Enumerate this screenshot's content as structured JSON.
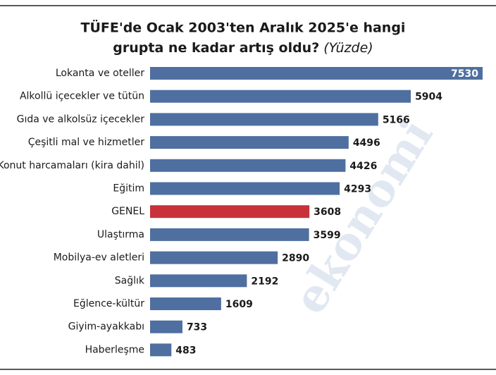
{
  "watermark": "ekonomi",
  "chart_data": {
    "type": "bar",
    "orientation": "horizontal",
    "title_lines": [
      "TÜFE'de Ocak 2003'ten Aralık 2025'e hangi",
      "grupta ne kadar artış oldu?"
    ],
    "subtitle": "(Yüzde)",
    "categories": [
      "Lokanta ve oteller",
      "Alkollü içecekler ve tütün",
      "Gıda ve alkolsüz içecekler",
      "Çeşitli mal ve hizmetler",
      "Konut harcamaları (kira dahil)",
      "Eğitim",
      "GENEL",
      "Ulaştırma",
      "Mobilya-ev aletleri",
      "Sağlık",
      "Eğlence-kültür",
      "Giyim-ayakkabı",
      "Haberleşme"
    ],
    "values": [
      7530,
      5904,
      5166,
      4496,
      4426,
      4293,
      3608,
      3599,
      2890,
      2192,
      1609,
      733,
      483
    ],
    "colors": [
      "#4f6fa0",
      "#4f6fa0",
      "#4f6fa0",
      "#4f6fa0",
      "#4f6fa0",
      "#4f6fa0",
      "#c8313a",
      "#4f6fa0",
      "#4f6fa0",
      "#4f6fa0",
      "#4f6fa0",
      "#4f6fa0",
      "#4f6fa0"
    ]
  }
}
